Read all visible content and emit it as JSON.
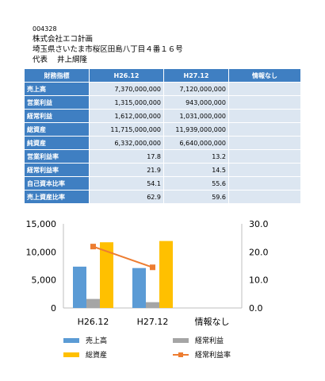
{
  "company": {
    "code": "004328",
    "name": "株式会社エコ計画",
    "address": "埼玉県さいたま市桜区田島八丁目４番１６号",
    "rep_title": "代表",
    "rep_name": "井上綱隆"
  },
  "table": {
    "headers": [
      "財務指標",
      "H26.12",
      "H27.12",
      "情報なし"
    ],
    "rows": [
      {
        "label": "売上高",
        "v1": "7,370,000,000",
        "v2": "7,120,000,000",
        "v3": ""
      },
      {
        "label": "営業利益",
        "v1": "1,315,000,000",
        "v2": "943,000,000",
        "v3": ""
      },
      {
        "label": "経常利益",
        "v1": "1,612,000,000",
        "v2": "1,031,000,000",
        "v3": ""
      },
      {
        "label": "総資産",
        "v1": "11,715,000,000",
        "v2": "11,939,000,000",
        "v3": ""
      },
      {
        "label": "純資産",
        "v1": "6,332,000,000",
        "v2": "6,640,000,000",
        "v3": ""
      },
      {
        "label": "営業利益率",
        "v1": "17.8",
        "v2": "13.2",
        "v3": ""
      },
      {
        "label": "経常利益率",
        "v1": "21.9",
        "v2": "14.5",
        "v3": ""
      },
      {
        "label": "自己資本比率",
        "v1": "54.1",
        "v2": "55.6",
        "v3": ""
      },
      {
        "label": "売上資産比率",
        "v1": "62.9",
        "v2": "59.6",
        "v3": ""
      }
    ]
  },
  "chart_data": {
    "type": "bar",
    "categories": [
      "H26.12",
      "H27.12",
      "情報なし"
    ],
    "series": [
      {
        "name": "売上高",
        "kind": "bar",
        "axis": "left",
        "color": "#5b9bd5",
        "values": [
          7370,
          7120,
          null
        ]
      },
      {
        "name": "経常利益",
        "kind": "bar",
        "axis": "left",
        "color": "#a5a5a5",
        "values": [
          1612,
          1031,
          null
        ]
      },
      {
        "name": "総資産",
        "kind": "bar",
        "axis": "left",
        "color": "#ffc000",
        "values": [
          11715,
          11939,
          null
        ]
      },
      {
        "name": "経常利益率",
        "kind": "line",
        "axis": "right",
        "color": "#ed7d31",
        "values": [
          21.9,
          14.5,
          null
        ]
      }
    ],
    "ylim": [
      0,
      15000
    ],
    "y2lim": [
      0,
      30
    ],
    "yticks": [
      "0",
      "5,000",
      "10,000",
      "15,000"
    ],
    "y2ticks": [
      "0.0",
      "10.0",
      "20.0",
      "30.0"
    ],
    "legend": "bottom",
    "grid": false
  }
}
